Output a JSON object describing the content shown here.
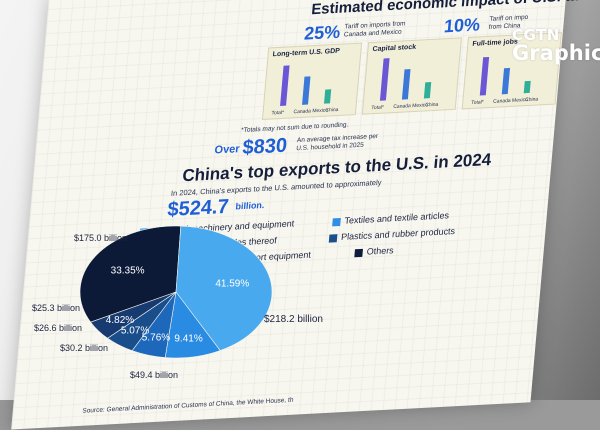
{
  "header": {
    "title": "Estimated economic impact of U.S. ta",
    "tariff1_value": "25%",
    "tariff1_text_line1": "Tariff on imports from",
    "tariff1_text_line2": "Canada and Mexico",
    "tariff2_value": "10%",
    "tariff2_text_line1": "Tariff on impo",
    "tariff2_text_line2": "from China"
  },
  "panels": [
    {
      "title": "Long-term U.S. GDP",
      "labels": [
        "Total*",
        "Canada Mexico",
        "China"
      ]
    },
    {
      "title": "Capital stock",
      "labels": [
        "Total*",
        "Canada Mexico",
        "China"
      ]
    },
    {
      "title": "Full-time jobs",
      "labels": [
        "Total*",
        "Canada Mexico",
        "China"
      ]
    }
  ],
  "note": "*Totals may not sum due to rounding.",
  "household": {
    "prefix": "Over",
    "value": "$830",
    "text_line1": "An average tax increase per",
    "text_line2": "U.S. household in 2025"
  },
  "section": {
    "title": "China's top exports to the U.S. in 2024",
    "sub_line1": "In 2024, China's exports to the U.S. amounted to approximately",
    "total_value": "$524.7",
    "total_unit": "billion."
  },
  "legend": [
    {
      "label": "Electrical machinery and equipment",
      "color": "#5ab4ef"
    },
    {
      "label": "Textiles and textile articles",
      "color": "#2f8fe6"
    },
    {
      "label": "Base metals and articles thereof",
      "color": "#1f6fc4"
    },
    {
      "label": "Plastics and rubber products",
      "color": "#1b4f8c"
    },
    {
      "label": "Vehicles, aircraft and transport equipment",
      "color": "#183a6e"
    },
    {
      "label": "Others",
      "color": "#0e1c3c"
    }
  ],
  "chart_data": {
    "type": "pie",
    "title": "China's top exports to the U.S. in 2024",
    "slices": [
      {
        "label": "Electrical machinery and equipment",
        "percent": 41.59,
        "value_text": "$218.2 billion",
        "color": "#49a9ee"
      },
      {
        "label": "Textiles and textile articles",
        "percent": 9.41,
        "value_text": "$49.4 billion",
        "color": "#2a8be3"
      },
      {
        "label": "Base metals and articles thereof",
        "percent": 5.76,
        "value_text": "$30.2 billion",
        "color": "#1d68ba"
      },
      {
        "label": "Plastics and rubber products",
        "percent": 5.07,
        "value_text": "$26.6 billion",
        "color": "#1a4e8a"
      },
      {
        "label": "Vehicles, aircraft and transport equipment",
        "percent": 4.82,
        "value_text": "$25.3 billion",
        "color": "#173b70"
      },
      {
        "label": "Others",
        "percent": 33.35,
        "value_text": "$175.0 billion",
        "color": "#0c1a38"
      }
    ]
  },
  "source": "Source: General Administration of Customs of China, the White House, th",
  "logo": {
    "line1": "CGTN",
    "line2": "Graphic"
  },
  "colors": {
    "accent": "#1f5fd6",
    "panel_bar_blue": "#3b78d8",
    "panel_bar_purple": "#6b57d6",
    "panel_bar_teal": "#2fae9a"
  }
}
